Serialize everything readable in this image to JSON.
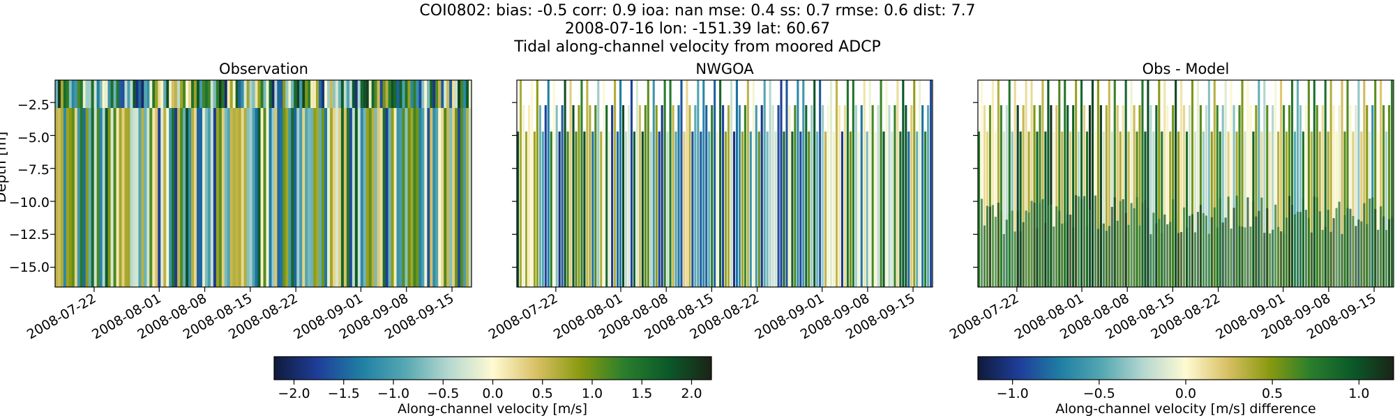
{
  "figure": {
    "title_lines": [
      "COI0802: bias: -0.5  corr: 0.9  ioa: nan  mse: 0.4  ss: 0.7  rmse: 0.6  dist: 7.7",
      "2008-07-16 lon: -151.39 lat: 60.67",
      "Tidal along-channel velocity from moored ADCP"
    ],
    "ylabel": "Depth [m]"
  },
  "colors": {
    "colormap": [
      "#0f1a3a",
      "#1f3e9a",
      "#1f7fa4",
      "#56a8b2",
      "#b6d8d0",
      "#fffad2",
      "#d8c064",
      "#8a9a10",
      "#2a7e2c",
      "#0b5a2a",
      "#1a2416"
    ]
  },
  "chart_data": [
    {
      "type": "heatmap",
      "title": "Observation",
      "x_range": [
        "2008-07-16",
        "2008-09-18"
      ],
      "x_ticks": [
        "2008-07-22",
        "2008-08-01",
        "2008-08-08",
        "2008-08-15",
        "2008-08-22",
        "2008-09-01",
        "2008-09-08",
        "2008-09-15"
      ],
      "y_range": [
        -16.5,
        -0.8
      ],
      "y_ticks": [
        -2.5,
        -5.0,
        -7.5,
        -10.0,
        -12.5,
        -15.0
      ],
      "value_range": [
        -2.2,
        2.2
      ],
      "data_description_values": {
        "coverage_depth_top": -0.8,
        "coverage_depth_bottom": -16.5
      }
    },
    {
      "type": "heatmap",
      "title": "NWGOA",
      "x_range": [
        "2008-07-16",
        "2008-09-18"
      ],
      "x_ticks": [
        "2008-07-22",
        "2008-08-01",
        "2008-08-08",
        "2008-08-15",
        "2008-08-22",
        "2008-09-01",
        "2008-09-08",
        "2008-09-15"
      ],
      "y_range": [
        -16.5,
        -0.8
      ],
      "value_range": [
        -2.2,
        2.2
      ],
      "model_levels_top": [
        -0.8,
        -2.7,
        -4.7
      ]
    },
    {
      "type": "heatmap",
      "title": "Obs - Model",
      "x_range": [
        "2008-07-16",
        "2008-09-18"
      ],
      "x_ticks": [
        "2008-07-22",
        "2008-08-01",
        "2008-08-08",
        "2008-08-15",
        "2008-08-22",
        "2008-09-01",
        "2008-09-08",
        "2008-09-15"
      ],
      "y_range": [
        -16.5,
        -0.8
      ],
      "value_range": [
        -1.2,
        1.2
      ],
      "model_levels_top": [
        -0.8,
        -2.7,
        -4.7
      ]
    }
  ],
  "colorbars": [
    {
      "label": "Along-channel velocity [m/s]",
      "range": [
        -2.2,
        2.2
      ],
      "ticks": [
        "−2.0",
        "−1.5",
        "−1.0",
        "−0.5",
        "0.0",
        "0.5",
        "1.0",
        "1.5",
        "2.0"
      ],
      "tick_values": [
        -2.0,
        -1.5,
        -1.0,
        -0.5,
        0.0,
        0.5,
        1.0,
        1.5,
        2.0
      ]
    },
    {
      "label": "Along-channel velocity [m/s] difference",
      "range": [
        -1.2,
        1.2
      ],
      "ticks": [
        "−1.0",
        "−0.5",
        "0.0",
        "0.5",
        "1.0"
      ],
      "tick_values": [
        -1.0,
        -0.5,
        0.0,
        0.5,
        1.0
      ]
    }
  ],
  "y_tick_labels": [
    "−2.5",
    "−5.0",
    "−7.5",
    "−10.0",
    "−12.5",
    "−15.0"
  ]
}
